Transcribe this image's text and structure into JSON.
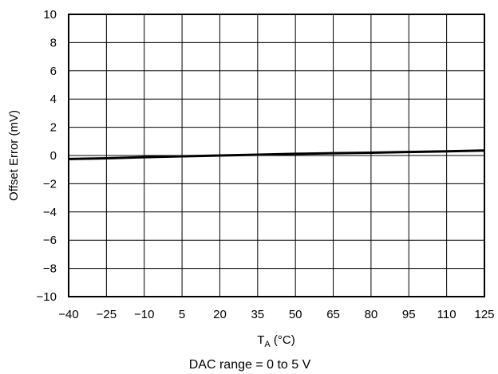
{
  "chart_data": {
    "type": "line",
    "title": "",
    "xlabel": "T",
    "xlabel_subscript": "A",
    "xlabel_unit": " (°C)",
    "ylabel": "Offset Error (mV)",
    "xlim": [
      -40,
      125
    ],
    "ylim": [
      -10,
      10
    ],
    "x_ticks": [
      "−40",
      "−25",
      "−10",
      "5",
      "20",
      "35",
      "50",
      "65",
      "80",
      "95",
      "110",
      "125"
    ],
    "x_tick_values": [
      -40,
      -25,
      -10,
      5,
      20,
      35,
      50,
      65,
      80,
      95,
      110,
      125
    ],
    "y_ticks": [
      "10",
      "8",
      "6",
      "4",
      "2",
      "0",
      "−2",
      "−4",
      "−6",
      "−8",
      "−10"
    ],
    "y_tick_values": [
      10,
      8,
      6,
      4,
      2,
      0,
      -2,
      -4,
      -6,
      -8,
      -10
    ],
    "grid": true,
    "series": [
      {
        "x": [
          -40,
          -25,
          -10,
          5,
          20,
          35,
          50,
          65,
          80,
          95,
          110,
          125
        ],
        "y": [
          -0.25,
          -0.2,
          -0.12,
          -0.06,
          0.0,
          0.06,
          0.12,
          0.16,
          0.2,
          0.25,
          0.3,
          0.35
        ]
      }
    ],
    "annotation": "DAC range = 0 to 5 V"
  }
}
